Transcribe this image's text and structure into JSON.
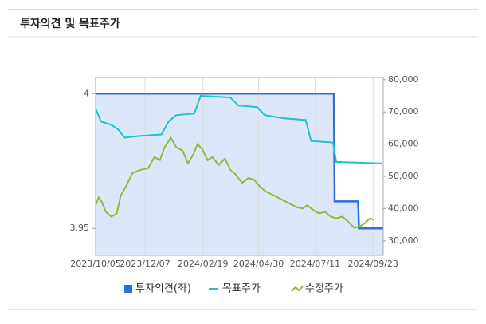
{
  "header": {
    "title": "투자의견 및 목표주가"
  },
  "chart_data": {
    "type": "line",
    "xlim": [
      "2023/10/05",
      "2024/10/06"
    ],
    "xticks": [
      "2023/10/05",
      "2023/12/07",
      "2024/02/19",
      "2024/04/30",
      "2024/07/11",
      "2024/09/23"
    ],
    "ylim": [
      3.94,
      4.006
    ],
    "yticks": [
      4,
      3.95
    ],
    "y2lim": [
      25500,
      80700
    ],
    "y2ticks": [
      {
        "value": 80000,
        "label": "80,000"
      },
      {
        "value": 70000,
        "label": "70,000"
      },
      {
        "value": 60000,
        "label": "60,000"
      },
      {
        "value": 50000,
        "label": "50,000"
      },
      {
        "value": 40000,
        "label": "40,000"
      },
      {
        "value": 30000,
        "label": "30,000"
      }
    ],
    "grid": true,
    "series": [
      {
        "name": "투자의견(좌)",
        "color": "#2e6fd6",
        "fill": "#dbe7f8",
        "axis": "y",
        "x": [
          "2023/10/05",
          "2024/08/04",
          "2024/08/05",
          "2024/09/04",
          "2024/09/05",
          "2024/10/06"
        ],
        "values": [
          4,
          4,
          3.96,
          3.96,
          3.95,
          3.95
        ]
      },
      {
        "name": "목표주가",
        "color": "#1fc0cf",
        "axis": "y2",
        "x": [
          "2023/10/05",
          "2023/10/12",
          "2023/10/25",
          "2023/11/03",
          "2023/11/11",
          "2023/11/28",
          "2023/12/28",
          "2024/01/06",
          "2024/01/16",
          "2024/02/08",
          "2024/02/16",
          "2024/03/25",
          "2024/04/04",
          "2024/04/28",
          "2024/05/08",
          "2024/06/02",
          "2024/06/29",
          "2024/07/06",
          "2024/08/03",
          "2024/08/07",
          "2024/10/05"
        ],
        "values": [
          71000,
          67000,
          66000,
          64500,
          62000,
          62500,
          63000,
          67000,
          69000,
          69500,
          75000,
          74500,
          72000,
          71500,
          69000,
          68000,
          67500,
          61000,
          60500,
          54500,
          54000
        ]
      },
      {
        "name": "수정주가",
        "color": "#8dbb3c",
        "axis": "y2",
        "x": [
          "2023/10/05",
          "2023/10/09",
          "2023/10/13",
          "2023/10/18",
          "2023/10/25",
          "2023/11/01",
          "2023/11/06",
          "2023/11/13",
          "2023/11/21",
          "2023/12/01",
          "2023/12/11",
          "2023/12/19",
          "2023/12/26",
          "2024/01/01",
          "2024/01/09",
          "2024/01/16",
          "2024/01/24",
          "2024/01/31",
          "2024/02/07",
          "2024/02/12",
          "2024/02/18",
          "2024/02/25",
          "2024/03/02",
          "2024/03/10",
          "2024/03/18",
          "2024/03/25",
          "2024/04/01",
          "2024/04/09",
          "2024/04/17",
          "2024/04/24",
          "2024/05/01",
          "2024/05/08",
          "2024/05/16",
          "2024/05/24",
          "2024/06/01",
          "2024/06/09",
          "2024/06/17",
          "2024/06/25",
          "2024/07/01",
          "2024/07/09",
          "2024/07/16",
          "2024/07/24",
          "2024/07/31",
          "2024/08/07",
          "2024/08/15",
          "2024/08/22",
          "2024/08/30",
          "2024/09/06",
          "2024/09/13",
          "2024/09/19",
          "2024/09/24"
        ],
        "values": [
          41000,
          43500,
          42000,
          39000,
          37500,
          38500,
          44000,
          47000,
          51000,
          52000,
          52500,
          56000,
          55000,
          59000,
          62000,
          59000,
          58000,
          54000,
          57000,
          60000,
          58500,
          55000,
          56000,
          53500,
          55500,
          52000,
          50500,
          48000,
          49500,
          49000,
          47000,
          45500,
          44500,
          43500,
          42500,
          41500,
          40500,
          40000,
          41000,
          39500,
          38500,
          39000,
          37500,
          37000,
          37500,
          36000,
          34000,
          34500,
          35500,
          37000,
          36500
        ]
      }
    ]
  }
}
